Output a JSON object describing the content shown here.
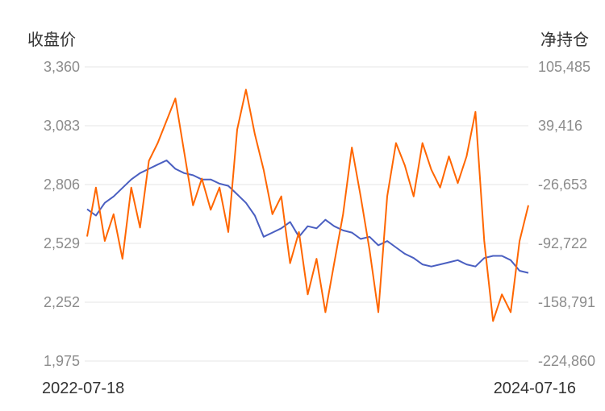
{
  "chart_data": {
    "type": "line",
    "left_axis": {
      "title": "收盘价",
      "ticks": [
        "3,360",
        "3,083",
        "2,806",
        "2,529",
        "2,252",
        "1,975"
      ],
      "range": [
        1975,
        3360
      ]
    },
    "right_axis": {
      "title": "净持仓",
      "ticks": [
        "105,485",
        "39,416",
        "-26,653",
        "-92,722",
        "-158,791",
        "-224,860"
      ],
      "range": [
        -224860,
        105485
      ]
    },
    "x_labels": {
      "start": "2022-07-18",
      "end": "2024-07-16"
    },
    "grid": true,
    "series": [
      {
        "axis": "left",
        "color": "#4a5fc1",
        "x": [
          0,
          0.02,
          0.04,
          0.06,
          0.08,
          0.1,
          0.12,
          0.14,
          0.16,
          0.18,
          0.2,
          0.22,
          0.24,
          0.26,
          0.28,
          0.3,
          0.32,
          0.34,
          0.36,
          0.38,
          0.4,
          0.42,
          0.44,
          0.46,
          0.48,
          0.5,
          0.52,
          0.54,
          0.56,
          0.58,
          0.6,
          0.62,
          0.64,
          0.66,
          0.68,
          0.7,
          0.72,
          0.74,
          0.76,
          0.78,
          0.8,
          0.82,
          0.84,
          0.86,
          0.88,
          0.9,
          0.92,
          0.94,
          0.96,
          0.98,
          1
        ],
        "values": [
          2690,
          2660,
          2720,
          2750,
          2790,
          2830,
          2860,
          2880,
          2900,
          2920,
          2880,
          2860,
          2850,
          2830,
          2830,
          2810,
          2800,
          2760,
          2720,
          2660,
          2560,
          2580,
          2600,
          2630,
          2560,
          2610,
          2600,
          2640,
          2610,
          2590,
          2580,
          2550,
          2560,
          2520,
          2540,
          2510,
          2480,
          2460,
          2430,
          2420,
          2430,
          2440,
          2450,
          2430,
          2420,
          2460,
          2470,
          2470,
          2450,
          2400,
          2390
        ]
      },
      {
        "axis": "right",
        "color": "#ff6600",
        "x": [
          0,
          0.02,
          0.04,
          0.06,
          0.08,
          0.1,
          0.12,
          0.14,
          0.16,
          0.18,
          0.2,
          0.22,
          0.24,
          0.26,
          0.28,
          0.3,
          0.32,
          0.34,
          0.36,
          0.38,
          0.4,
          0.42,
          0.44,
          0.46,
          0.48,
          0.5,
          0.52,
          0.54,
          0.56,
          0.58,
          0.6,
          0.62,
          0.64,
          0.66,
          0.68,
          0.7,
          0.72,
          0.74,
          0.76,
          0.78,
          0.8,
          0.82,
          0.84,
          0.86,
          0.88,
          0.9,
          0.92,
          0.94,
          0.96,
          0.98,
          1
        ],
        "values": [
          -85000,
          -30000,
          -90000,
          -60000,
          -110000,
          -30000,
          -75000,
          0,
          20000,
          45000,
          70000,
          10000,
          -50000,
          -20000,
          -55000,
          -30000,
          -80000,
          35000,
          80000,
          30000,
          -10000,
          -60000,
          -40000,
          -115000,
          -80000,
          -150000,
          -110000,
          -170000,
          -115000,
          -60000,
          15000,
          -40000,
          -100000,
          -170000,
          -40000,
          20000,
          -5000,
          -40000,
          20000,
          -10000,
          -30000,
          5000,
          -25000,
          5000,
          55000,
          -90000,
          -180000,
          -150000,
          -170000,
          -90000,
          -50000
        ]
      }
    ]
  }
}
